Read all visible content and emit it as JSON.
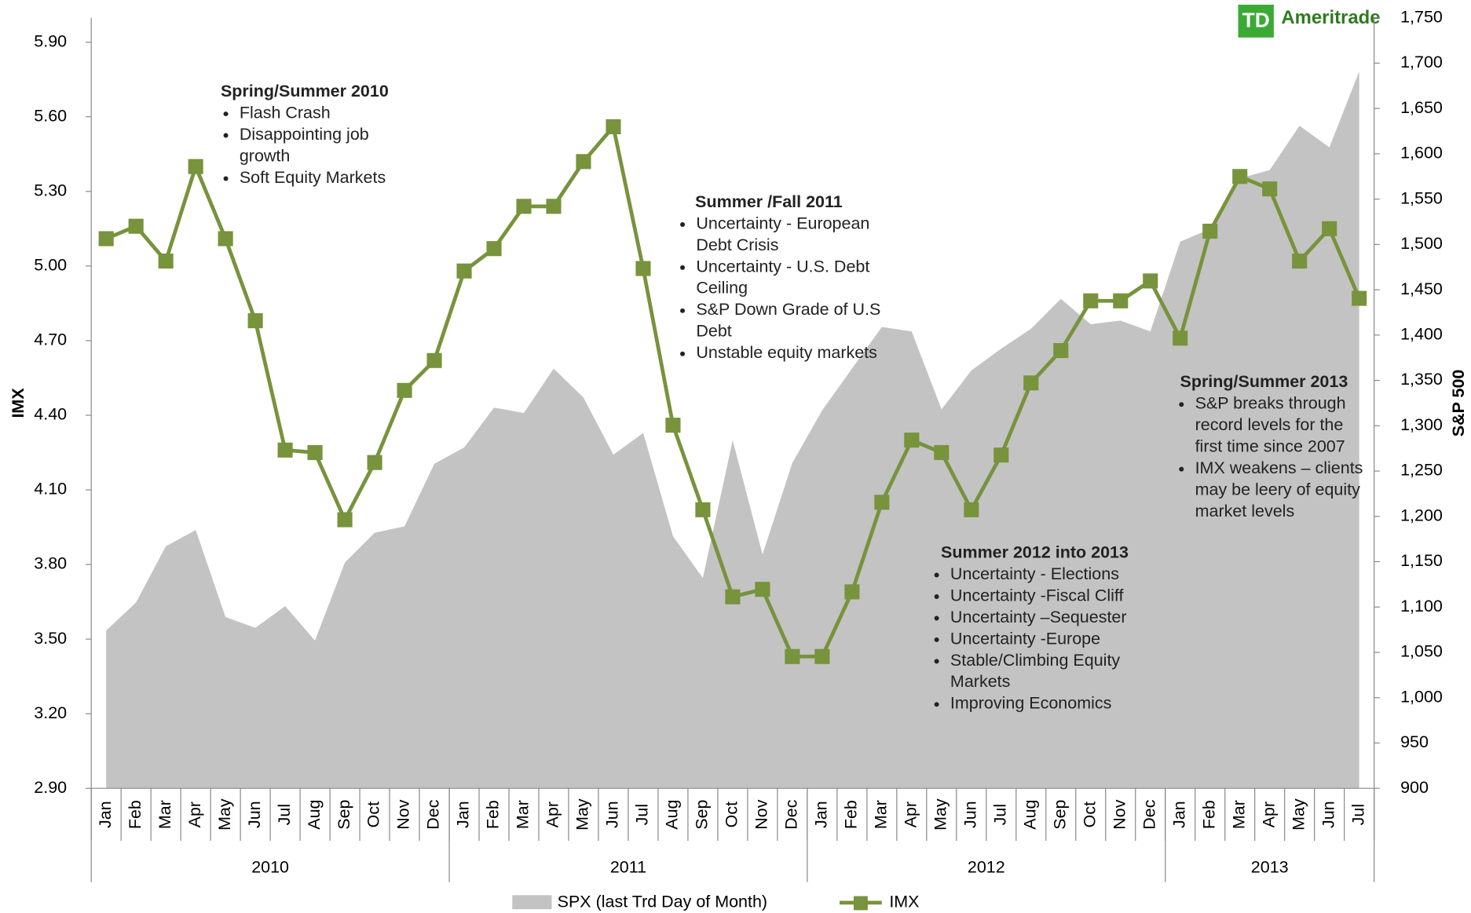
{
  "chart_data": {
    "type": "combo",
    "logo": {
      "mark": "TD",
      "text": "Ameritrade"
    },
    "categories": [
      "Jan",
      "Feb",
      "Mar",
      "Apr",
      "May",
      "Jun",
      "Jul",
      "Aug",
      "Sep",
      "Oct",
      "Nov",
      "Dec",
      "Jan",
      "Feb",
      "Mar",
      "Apr",
      "May",
      "Jun",
      "Jul",
      "Aug",
      "Sep",
      "Oct",
      "Nov",
      "Dec",
      "Jan",
      "Feb",
      "Mar",
      "Apr",
      "May",
      "Jun",
      "Jul",
      "Aug",
      "Sep",
      "Oct",
      "Nov",
      "Dec",
      "Jan",
      "Feb",
      "Mar",
      "Apr",
      "May",
      "Jun",
      "Jul"
    ],
    "years": [
      "2010",
      "2011",
      "2012",
      "2013"
    ],
    "ylabel": "IMX",
    "y2label": "S&P 500",
    "ylim": [
      2.9,
      5.9
    ],
    "yticks": [
      {
        "value": 2.9,
        "label": "2.90"
      },
      {
        "value": 3.2,
        "label": "3.20"
      },
      {
        "value": 3.5,
        "label": "3.50"
      },
      {
        "value": 3.8,
        "label": "3.80"
      },
      {
        "value": 4.1,
        "label": "4.10"
      },
      {
        "value": 4.4,
        "label": "4.40"
      },
      {
        "value": 4.7,
        "label": "4.70"
      },
      {
        "value": 5.0,
        "label": "5.00"
      },
      {
        "value": 5.3,
        "label": "5.30"
      },
      {
        "value": 5.6,
        "label": "5.60"
      },
      {
        "value": 5.9,
        "label": "5.90"
      }
    ],
    "y2lim": [
      900,
      1750
    ],
    "y2ticks": [
      900,
      950,
      {
        "value": 1000,
        "label": "1,000"
      },
      {
        "value": 1050,
        "label": "1,050"
      },
      {
        "value": 1100,
        "label": "1,100"
      },
      {
        "value": 1150,
        "label": "1,150"
      },
      {
        "value": 1200,
        "label": "1,200"
      },
      {
        "value": 1250,
        "label": "1,250"
      },
      {
        "value": 1300,
        "label": "1,300"
      },
      {
        "value": 1350,
        "label": "1,350"
      },
      {
        "value": 1400,
        "label": "1,400"
      },
      {
        "value": 1450,
        "label": "1,450"
      },
      {
        "value": 1500,
        "label": "1,500"
      },
      {
        "value": 1550,
        "label": "1,550"
      },
      {
        "value": 1600,
        "label": "1,600"
      },
      {
        "value": 1650,
        "label": "1,650"
      },
      {
        "value": 1700,
        "label": "1,700"
      },
      {
        "value": 1750,
        "label": "1,750"
      }
    ],
    "series": [
      {
        "name": "SPX (last Trd Day of Month)",
        "type": "area",
        "axis": "y2",
        "color": "#c3c3c3",
        "values": [
          1074,
          1105,
          1167,
          1185,
          1089,
          1077,
          1101,
          1063,
          1149,
          1182,
          1189,
          1258,
          1276,
          1320,
          1314,
          1363,
          1331,
          1268,
          1292,
          1178,
          1132,
          1284,
          1158,
          1259,
          1317,
          1363,
          1409,
          1404,
          1318,
          1361,
          1385,
          1407,
          1440,
          1412,
          1416,
          1404,
          1503,
          1517,
          1573,
          1582,
          1631,
          1607,
          1691
        ]
      },
      {
        "name": "IMX",
        "type": "line",
        "axis": "y",
        "color": "#77933c",
        "values": [
          5.11,
          5.16,
          5.02,
          5.4,
          5.11,
          4.78,
          4.26,
          4.25,
          3.98,
          4.21,
          4.5,
          4.62,
          4.98,
          5.07,
          5.24,
          5.24,
          5.42,
          5.56,
          4.99,
          4.36,
          4.02,
          3.67,
          3.7,
          3.43,
          3.43,
          3.69,
          4.05,
          4.3,
          4.25,
          4.02,
          4.24,
          4.53,
          4.66,
          4.86,
          4.86,
          4.94,
          4.71,
          5.14,
          5.36,
          5.31,
          5.02,
          5.15,
          4.87
        ]
      }
    ],
    "annotations": [
      {
        "title": "Spring/Summer 2010",
        "items": [
          "Flash Crash",
          "Disappointing job growth",
          "Soft Equity Markets"
        ]
      },
      {
        "title": "Summer /Fall 2011",
        "items": [
          "Uncertainty - European Debt Crisis",
          "Uncertainty - U.S. Debt Ceiling",
          "S&P Down Grade of U.S Debt",
          "Unstable equity markets"
        ]
      },
      {
        "title": "Summer 2012 into 2013",
        "items": [
          "Uncertainty - Elections",
          "Uncertainty -Fiscal Cliff",
          "Uncertainty –Sequester",
          "Uncertainty -Europe",
          "Stable/Climbing Equity Markets",
          "Improving Economics"
        ]
      },
      {
        "title": "Spring/Summer 2013",
        "items": [
          "S&P breaks through record levels for the first time since 2007",
          "IMX weakens – clients may be leery of equity market levels"
        ]
      }
    ]
  }
}
